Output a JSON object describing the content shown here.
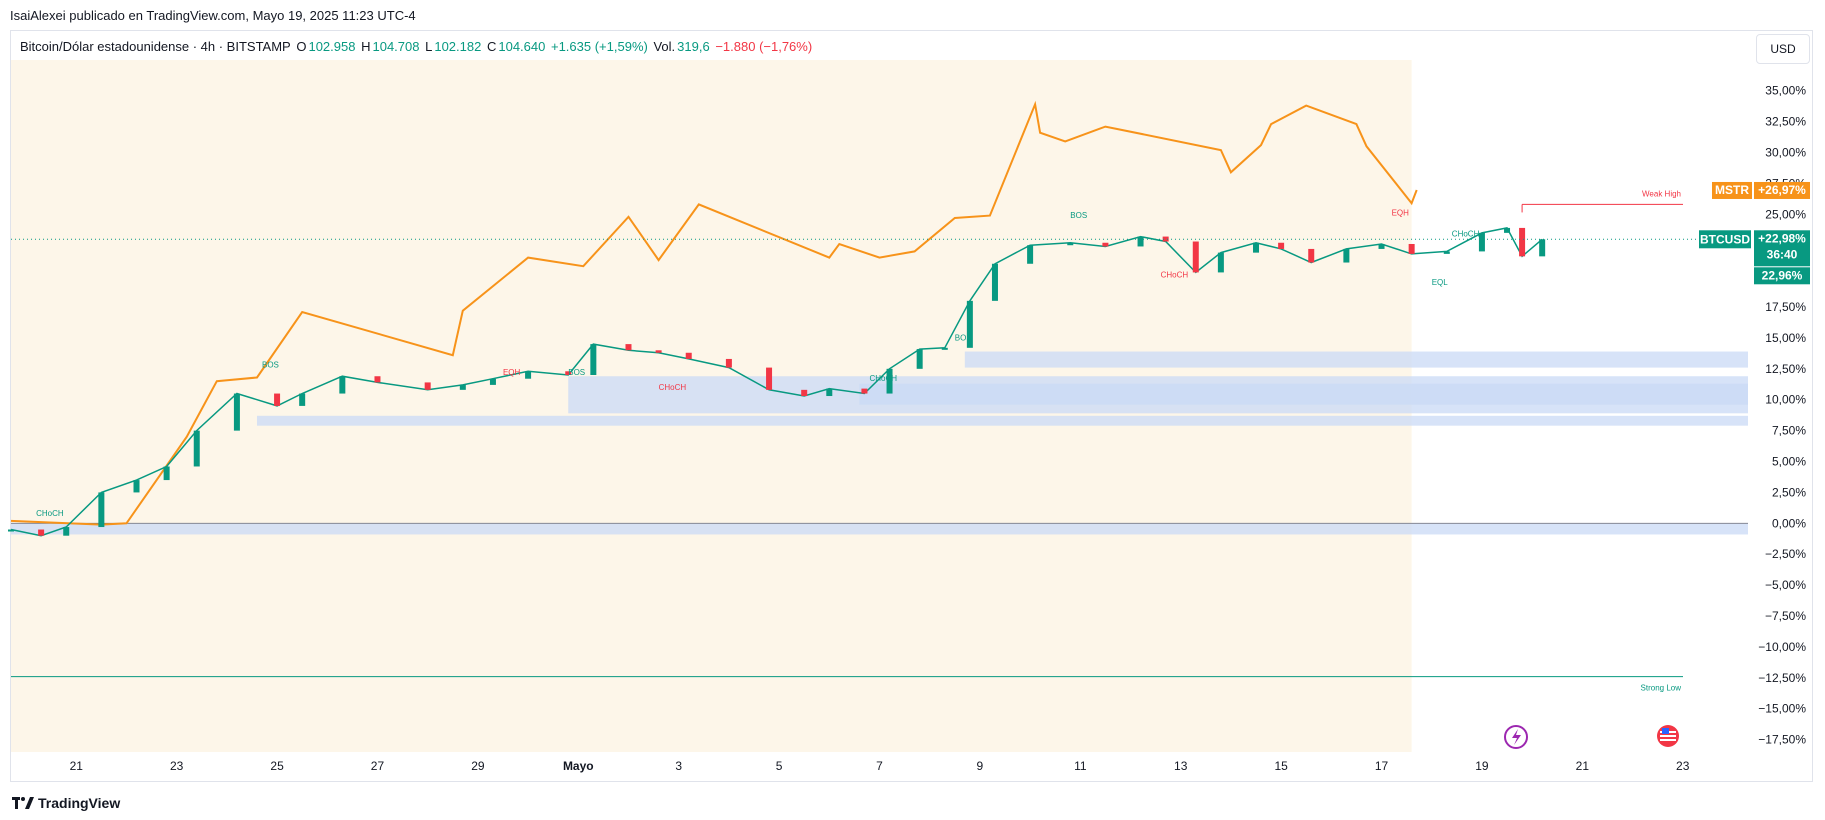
{
  "header": {
    "publisher": "IsaiAlexei publicado en TradingView.com, Mayo 19, 2025 11:23 UTC-4"
  },
  "legend": {
    "symbol": "Bitcoin/Dólar estadounidense · 4h · BITSTAMP",
    "open_label": "O",
    "open_value": "102.958",
    "high_label": "H",
    "high_value": "104.708",
    "low_label": "L",
    "low_value": "102.182",
    "close_label": "C",
    "close_value": "104.640",
    "change": "+1.635 (+1,59%)",
    "vol_label": "Vol.",
    "vol_value": "319,6",
    "vol_change": "−1.880 (−1,76%)"
  },
  "currency_button": "USD",
  "footer": {
    "brand": "TradingView"
  },
  "colors": {
    "up": "#089981",
    "down": "#f23645",
    "mstr": "#f7931a",
    "zone": "#c9d9f5",
    "fill": "#fdf6e9"
  },
  "chart_data": {
    "type": "line",
    "y_axis": {
      "unit": "%",
      "ticks": [
        "35,00%",
        "32,50%",
        "30,00%",
        "27,50%",
        "25,00%",
        "22,50%",
        "20,00%",
        "17,50%",
        "15,00%",
        "12,50%",
        "10,00%",
        "7,50%",
        "5,00%",
        "2,50%",
        "0,00%",
        "−2,50%",
        "−5,00%",
        "−7,50%",
        "−10,00%",
        "−12,50%",
        "−15,00%",
        "−17,50%"
      ],
      "tick_values": [
        35,
        32.5,
        30,
        27.5,
        25,
        22.5,
        20,
        17.5,
        15,
        12.5,
        10,
        7.5,
        5,
        2.5,
        0,
        -2.5,
        -5,
        -7.5,
        -10,
        -12.5,
        -15,
        -17.5
      ],
      "range": [
        -18.5,
        37
      ]
    },
    "x_axis": {
      "ticks": [
        "21",
        "23",
        "25",
        "27",
        "29",
        "Mayo",
        "3",
        "5",
        "7",
        "9",
        "11",
        "13",
        "15",
        "17",
        "19",
        "21",
        "23"
      ],
      "tick_days": [
        0,
        2,
        4,
        6,
        8,
        10,
        12,
        14,
        16,
        18,
        20,
        22,
        24,
        26,
        28,
        30,
        32
      ],
      "range_days": [
        -1.3,
        33.3
      ]
    },
    "series": [
      {
        "name": "MSTR",
        "last_label": "+26,97%",
        "x": [
          -1.3,
          0.5,
          1.0,
          2.2,
          2.8,
          3.6,
          4.5,
          7.5,
          7.7,
          9.0,
          10.1,
          11.0,
          11.6,
          12.4,
          15.0,
          15.2,
          16.0,
          16.7,
          17.5,
          18.2,
          19.1,
          19.2,
          19.7,
          20.5,
          22.8,
          23.0,
          23.6,
          23.8,
          24.5,
          25.5,
          25.7,
          26.6,
          26.7
        ],
        "values": [
          0.2,
          -0.1,
          0,
          7,
          11.5,
          11.8,
          17.1,
          13.6,
          17.2,
          21.5,
          20.8,
          24.8,
          21.3,
          25.8,
          21.5,
          22.6,
          21.5,
          22,
          24.7,
          24.9,
          33.9,
          31.6,
          30.9,
          32.1,
          30.2,
          28.4,
          30.6,
          32.3,
          33.8,
          32.3,
          30.5,
          25.9,
          26.97
        ]
      },
      {
        "name": "BTCUSD",
        "last_label": "+22,98%",
        "countdown": "36:40",
        "secondary_label": "22,96%",
        "x": [
          -1.3,
          -0.7,
          -0.2,
          0.5,
          1.2,
          1.8,
          2.4,
          3.2,
          4.0,
          4.5,
          5.3,
          6.0,
          7.0,
          7.7,
          8.3,
          9.0,
          9.8,
          10.3,
          11.0,
          11.6,
          12.2,
          13.0,
          13.8,
          14.5,
          15.0,
          15.7,
          16.2,
          16.8,
          17.3,
          17.8,
          18.3,
          19.0,
          19.8,
          20.5,
          21.2,
          21.7,
          22.3,
          22.8,
          23.5,
          24.0,
          24.6,
          25.3,
          26.0,
          26.6,
          27.3,
          28.0,
          28.5,
          28.8,
          29.2
        ],
        "values": [
          -0.5,
          -1.0,
          -0.3,
          2.5,
          3.5,
          4.6,
          7.5,
          10.5,
          9.5,
          10.5,
          11.9,
          11.4,
          10.8,
          11.2,
          11.7,
          12.3,
          12.0,
          14.5,
          14.0,
          13.8,
          13.3,
          12.6,
          10.8,
          10.3,
          10.9,
          10.5,
          12.5,
          14.1,
          14.2,
          18.0,
          21.0,
          22.5,
          22.7,
          22.4,
          23.2,
          22.8,
          20.3,
          21.9,
          22.7,
          22.2,
          21.1,
          22.2,
          22.6,
          21.8,
          22.0,
          23.5,
          23.9,
          21.6,
          22.98
        ]
      }
    ],
    "zones": [
      {
        "from_day": -1.3,
        "low": -0.9,
        "high": 0.0
      },
      {
        "from_day": 3.6,
        "low": 7.9,
        "high": 8.7
      },
      {
        "from_day": 9.8,
        "low": 8.9,
        "high": 11.9
      },
      {
        "from_day": 15.6,
        "low": 9.6,
        "high": 11.3
      },
      {
        "from_day": 17.7,
        "low": 12.6,
        "high": 13.9
      }
    ],
    "levels": [
      {
        "label": "Weak High",
        "value": 25.8,
        "from_day": 28.8,
        "color": "#f23645"
      },
      {
        "label": "Strong Low",
        "value": -12.4,
        "from_day": -1.3,
        "color": "#089981"
      }
    ],
    "structure_labels": [
      {
        "text": "CHoCH",
        "day": -0.8,
        "value": 0.6,
        "color": "#089981"
      },
      {
        "text": "BOS",
        "day": 3.7,
        "value": 12.6,
        "color": "#089981"
      },
      {
        "text": "EQH",
        "day": 8.5,
        "value": 12.0,
        "color": "#f23645"
      },
      {
        "text": "BOS",
        "day": 9.8,
        "value": 12.0,
        "color": "#089981"
      },
      {
        "text": "CHoCH",
        "day": 11.6,
        "value": 10.8,
        "color": "#f23645"
      },
      {
        "text": "CHoCH",
        "day": 15.8,
        "value": 11.5,
        "color": "#089981"
      },
      {
        "text": "BOS",
        "day": 17.5,
        "value": 14.8,
        "color": "#089981"
      },
      {
        "text": "BOS",
        "day": 19.8,
        "value": 24.7,
        "color": "#089981"
      },
      {
        "text": "CHoCH",
        "day": 21.6,
        "value": 19.9,
        "color": "#f23645"
      },
      {
        "text": "EQH",
        "day": 26.2,
        "value": 24.9,
        "color": "#f23645"
      },
      {
        "text": "CHoCH",
        "day": 27.4,
        "value": 23.2,
        "color": "#089981"
      },
      {
        "text": "EQL",
        "day": 27.0,
        "value": 19.3,
        "color": "#089981"
      }
    ]
  }
}
